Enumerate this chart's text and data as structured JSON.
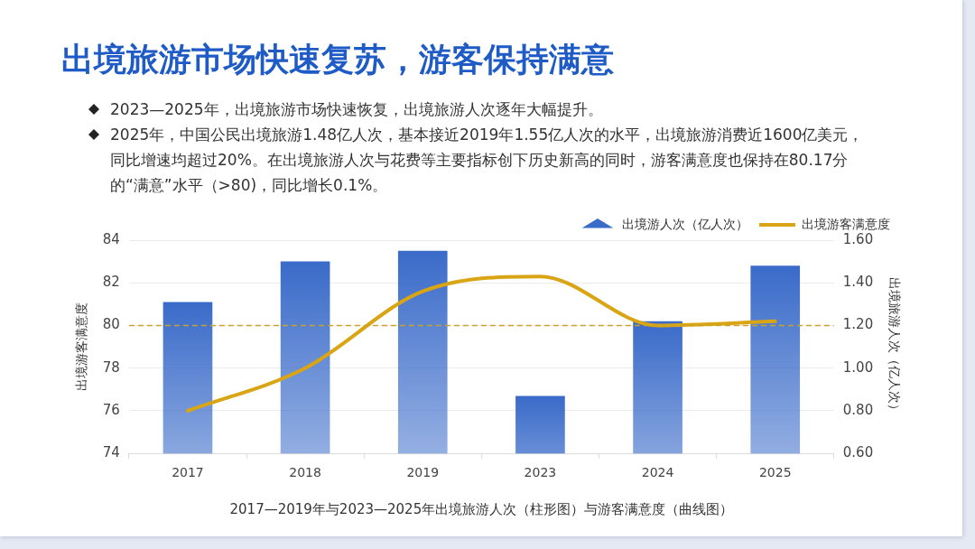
{
  "chart_data": {
    "type": "bar",
    "title": "出境旅游市场快速复苏，游客保持满意",
    "annotations": [
      "2023—2025年，出境旅游市场快速恢复，出境旅游人次逐年大幅提升。",
      "2025年，中国公民出境旅游1.48亿人次，基本接近2019年1.55亿人次的水平，出境旅游消费近1600亿美元，同比增速均超过20%。在出境旅游人次与花费等主要指标创下历史新高的同时，游客满意度也保持在80.17分的“满意”水平（>80)，同比增长0.1%。"
    ],
    "xlabel": "2017—2019年与2023—2025年出境旅游人次（柱形图）与游客满意度（曲线图）",
    "ylabel": "出境游客满意度",
    "y2label": "出境旅游人次（亿人次）",
    "categories": [
      "2017",
      "2018",
      "2019",
      "2023",
      "2024",
      "2025"
    ],
    "series": [
      {
        "name": "出境游人次（亿人次）",
        "axis": "y2",
        "color": "#3a6bc9",
        "values": [
          1.31,
          1.5,
          1.55,
          0.87,
          1.22,
          1.48
        ]
      },
      {
        "name": "出境游客满意度",
        "type": "line",
        "color": "#d9a514",
        "values": [
          76.0,
          78.0,
          81.6,
          82.3,
          80.0,
          80.2
        ]
      }
    ],
    "ylim": [
      74,
      84
    ],
    "yticks": [
      74,
      76,
      78,
      80,
      82,
      84
    ],
    "y2lim": [
      0.6,
      1.6
    ],
    "y2ticks": [
      {
        "value": 0.6,
        "label": "0.60"
      },
      {
        "value": 0.8,
        "label": "0.80"
      },
      {
        "value": 1.0,
        "label": "1.00"
      },
      {
        "value": 1.2,
        "label": "1.20"
      },
      {
        "value": 1.4,
        "label": "1.40"
      },
      {
        "value": 1.6,
        "label": "1.60"
      }
    ],
    "ref_lines": [
      {
        "axis": "y",
        "value": 80,
        "color": "#c9a227",
        "line_style": "dashed"
      }
    ],
    "grid": "y",
    "legend": "top right",
    "marker": "none"
  }
}
